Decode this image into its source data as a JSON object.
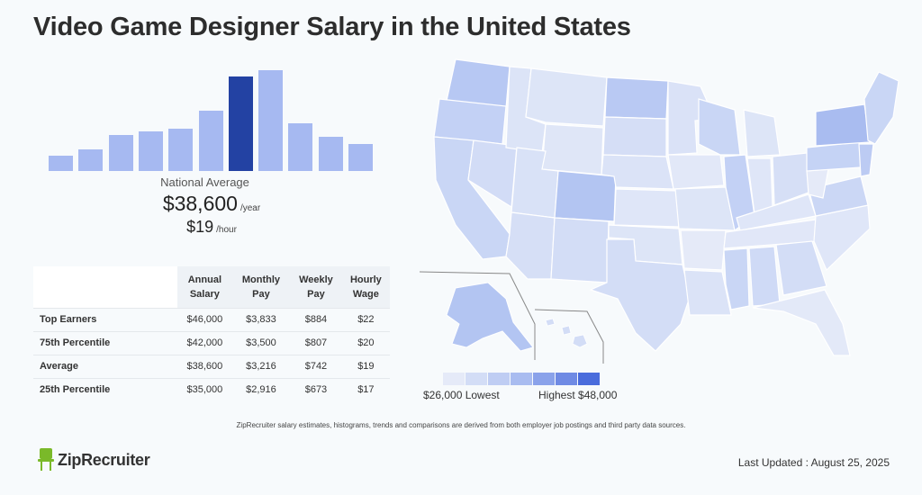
{
  "header": {
    "title": "Video Game Designer Salary in the United States"
  },
  "histogram": {
    "bars": [
      0.15,
      0.21,
      0.36,
      0.39,
      0.42,
      0.6,
      0.94,
      1.0,
      0.47,
      0.34,
      0.27
    ],
    "highlight_index": 6,
    "colors": {
      "normal": "#a6b9f1",
      "highlight": "#2342a3"
    }
  },
  "national": {
    "label": "National Average",
    "yearly": "$38,600",
    "yearly_unit": "/year",
    "hourly": "$19",
    "hourly_unit": "/hour"
  },
  "table": {
    "headers": [
      [
        "Annual",
        "Salary"
      ],
      [
        "Monthly",
        "Pay"
      ],
      [
        "Weekly",
        "Pay"
      ],
      [
        "Hourly",
        "Wage"
      ]
    ],
    "rows": [
      {
        "label": "Top Earners",
        "values": [
          "$46,000",
          "$3,833",
          "$884",
          "$22"
        ]
      },
      {
        "label": "75th Percentile",
        "values": [
          "$42,000",
          "$3,500",
          "$807",
          "$20"
        ]
      },
      {
        "label": "Average",
        "values": [
          "$38,600",
          "$3,216",
          "$742",
          "$19"
        ]
      },
      {
        "label": "25th Percentile",
        "values": [
          "$35,000",
          "$2,916",
          "$673",
          "$17"
        ]
      }
    ]
  },
  "legend": {
    "colors": [
      "#e5eaf8",
      "#d3ddf6",
      "#bfcdf3",
      "#a9bcf0",
      "#8aa2ea",
      "#6f8ae4",
      "#4a6cdc"
    ],
    "low": "$26,000 Lowest",
    "high": "Highest $48,000"
  },
  "disclaimer": "ZipRecruiter salary estimates, histograms, trends and comparisons are derived from both employer job postings and third party data sources.",
  "brand": {
    "name": "ZipRecruiter",
    "color": "#7ab929"
  },
  "footer": {
    "updated": "Last Updated : August 25, 2025"
  }
}
